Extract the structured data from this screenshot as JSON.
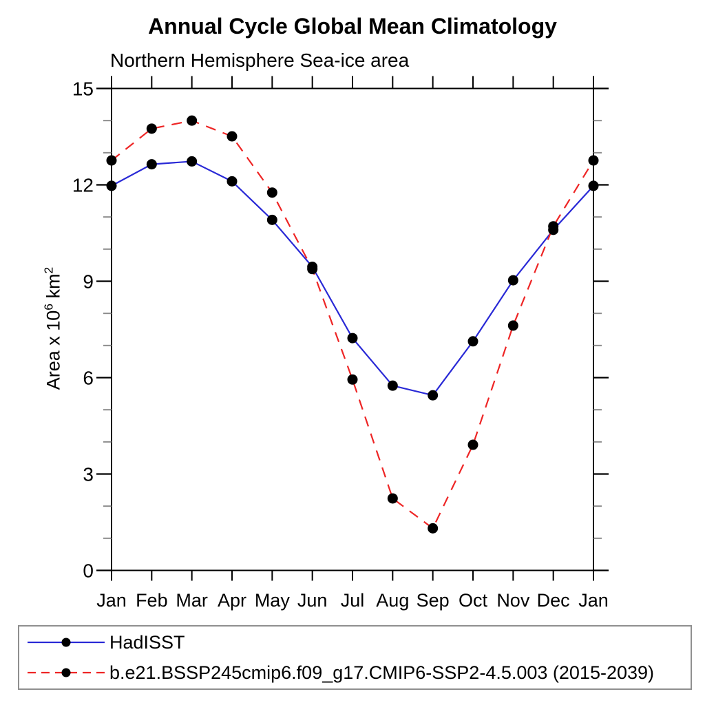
{
  "y_axis_label": {
    "prefix": "Area x 10",
    "sup_exp": "6",
    "mid": " km",
    "sup_unit": "2"
  },
  "chart_data": {
    "type": "line",
    "title": "Annual Cycle Global Mean Climatology",
    "subtitle": "Northern Hemisphere Sea-ice area",
    "xlabel": "",
    "ylabel": "Area x 10^6 km^2",
    "x_categories": [
      "Jan",
      "Feb",
      "Mar",
      "Apr",
      "May",
      "Jun",
      "Jul",
      "Aug",
      "Sep",
      "Oct",
      "Nov",
      "Dec",
      "Jan"
    ],
    "ylim": [
      0,
      15
    ],
    "y_major_ticks": [
      0,
      3,
      6,
      9,
      12,
      15
    ],
    "y_minor_tick_interval": 1,
    "grid": false,
    "legend_position": "bottom",
    "marker_color": "#000000",
    "frame_color": "#000000",
    "minor_tick_color": "#8c8c8c",
    "series": [
      {
        "name": "HadISST",
        "color": "#2929d6",
        "line_style": "solid",
        "marker": "filled-circle",
        "values": [
          11.97,
          12.64,
          12.73,
          12.11,
          10.91,
          9.45,
          7.23,
          5.75,
          5.45,
          7.13,
          9.03,
          10.6,
          11.97
        ]
      },
      {
        "name": "b.e21.BSSP245cmip6.f09_g17.CMIP6-SSP2-4.5.003 (2015-2039)",
        "color": "#ee2525",
        "line_style": "dashed",
        "marker": "filled-circle",
        "values": [
          12.76,
          13.75,
          14.0,
          13.51,
          11.76,
          9.38,
          5.94,
          2.24,
          1.31,
          3.91,
          7.62,
          10.71,
          12.76
        ]
      }
    ]
  }
}
